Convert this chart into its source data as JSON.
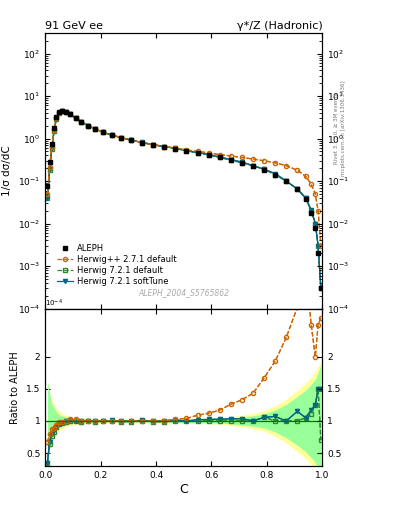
{
  "title_left": "91 GeV ee",
  "title_right": "γ*/Z (Hadronic)",
  "ylabel_main": "1/σ dσ/dC",
  "ylabel_ratio": "Ratio to ALEPH",
  "xlabel": "C",
  "watermark": "ALEPH_2004_S5765862",
  "right_label": "Rivet 3.1.10, ≥ 3M events",
  "right_label2": "mcplots.cern.ch [arXiv:1306.3436]",
  "legend": [
    "ALEPH",
    "Herwig++ 2.7.1 default",
    "Herwig 7.2.1 default",
    "Herwig 7.2.1 softTune"
  ],
  "aleph_color": "#000000",
  "herwig_pp_color": "#cc6600",
  "herwig721_color": "#338833",
  "herwig721soft_color": "#006688",
  "band_yellow": "#ffff99",
  "band_green": "#99ff99",
  "C_data": [
    0.008,
    0.016,
    0.024,
    0.032,
    0.04,
    0.05,
    0.06,
    0.075,
    0.09,
    0.11,
    0.13,
    0.155,
    0.18,
    0.21,
    0.24,
    0.275,
    0.31,
    0.35,
    0.39,
    0.43,
    0.47,
    0.51,
    0.55,
    0.59,
    0.63,
    0.67,
    0.71,
    0.75,
    0.79,
    0.83,
    0.87,
    0.91,
    0.94,
    0.96,
    0.975,
    0.985,
    0.995
  ],
  "aleph_y": [
    0.075,
    0.28,
    0.75,
    1.8,
    3.2,
    4.2,
    4.5,
    4.2,
    3.7,
    3.0,
    2.5,
    2.0,
    1.7,
    1.4,
    1.2,
    1.05,
    0.92,
    0.8,
    0.72,
    0.65,
    0.58,
    0.52,
    0.46,
    0.41,
    0.36,
    0.31,
    0.27,
    0.23,
    0.18,
    0.14,
    0.1,
    0.065,
    0.038,
    0.018,
    0.008,
    0.002,
    0.0003
  ],
  "herwig_pp_y": [
    0.05,
    0.22,
    0.65,
    1.6,
    3.0,
    4.1,
    4.4,
    4.2,
    3.8,
    3.1,
    2.5,
    2.0,
    1.7,
    1.4,
    1.2,
    1.05,
    0.92,
    0.8,
    0.72,
    0.65,
    0.6,
    0.54,
    0.5,
    0.46,
    0.42,
    0.39,
    0.36,
    0.33,
    0.3,
    0.27,
    0.23,
    0.18,
    0.13,
    0.085,
    0.05,
    0.02,
    0.003
  ],
  "herwig721_y": [
    0.04,
    0.18,
    0.58,
    1.5,
    2.9,
    4.0,
    4.35,
    4.15,
    3.72,
    3.0,
    2.48,
    2.0,
    1.68,
    1.4,
    1.2,
    1.04,
    0.91,
    0.8,
    0.71,
    0.64,
    0.58,
    0.52,
    0.46,
    0.41,
    0.36,
    0.31,
    0.27,
    0.23,
    0.19,
    0.14,
    0.1,
    0.065,
    0.04,
    0.02,
    0.01,
    0.003,
    0.0003
  ],
  "herwig721soft_y": [
    0.04,
    0.19,
    0.6,
    1.55,
    2.92,
    4.05,
    4.38,
    4.18,
    3.74,
    3.02,
    2.5,
    2.01,
    1.69,
    1.4,
    1.21,
    1.05,
    0.92,
    0.81,
    0.72,
    0.65,
    0.59,
    0.52,
    0.47,
    0.42,
    0.37,
    0.32,
    0.28,
    0.23,
    0.19,
    0.15,
    0.1,
    0.065,
    0.04,
    0.021,
    0.01,
    0.003,
    0.0003
  ],
  "ratio_herwig_pp": [
    0.67,
    0.79,
    0.87,
    0.89,
    0.94,
    0.98,
    0.98,
    1.0,
    1.03,
    1.03,
    1.0,
    1.0,
    1.0,
    1.0,
    1.0,
    1.0,
    1.0,
    1.0,
    1.0,
    1.0,
    1.03,
    1.04,
    1.09,
    1.12,
    1.17,
    1.26,
    1.33,
    1.43,
    1.67,
    1.93,
    2.3,
    2.77,
    3.42,
    2.5,
    2.0,
    2.5,
    2.6
  ],
  "ratio_herwig721": [
    0.35,
    0.64,
    0.77,
    0.83,
    0.91,
    0.95,
    0.97,
    0.99,
    1.005,
    1.0,
    0.99,
    1.0,
    0.99,
    1.0,
    1.0,
    0.99,
    0.99,
    1.0,
    0.99,
    0.985,
    1.0,
    1.0,
    1.0,
    1.0,
    1.0,
    1.0,
    1.0,
    1.0,
    1.06,
    1.0,
    1.0,
    1.0,
    1.05,
    1.11,
    1.25,
    1.5,
    0.7
  ],
  "ratio_herwig721soft": [
    0.35,
    0.68,
    0.8,
    0.86,
    0.91,
    0.96,
    0.97,
    0.995,
    1.01,
    1.007,
    1.0,
    1.005,
    0.994,
    1.0,
    1.008,
    1.0,
    1.0,
    1.01,
    1.0,
    1.0,
    1.017,
    1.0,
    1.02,
    1.024,
    1.028,
    1.032,
    1.037,
    1.0,
    1.056,
    1.07,
    1.0,
    1.15,
    1.05,
    1.17,
    1.25,
    1.5,
    1.5
  ],
  "band_yellow_lo": [
    0.38,
    0.57,
    0.68,
    0.74,
    0.8,
    0.85,
    0.88,
    0.91,
    0.93,
    0.945,
    0.955,
    0.96,
    0.965,
    0.97,
    0.975,
    0.975,
    0.975,
    0.975,
    0.975,
    0.975,
    0.97,
    0.965,
    0.96,
    0.955,
    0.95,
    0.93,
    0.91,
    0.88,
    0.84,
    0.76,
    0.66,
    0.52,
    0.41,
    0.32,
    0.24,
    0.14,
    0.07
  ],
  "band_yellow_hi": [
    1.62,
    1.43,
    1.32,
    1.26,
    1.2,
    1.15,
    1.12,
    1.09,
    1.07,
    1.055,
    1.045,
    1.04,
    1.035,
    1.03,
    1.025,
    1.025,
    1.025,
    1.025,
    1.025,
    1.025,
    1.03,
    1.035,
    1.04,
    1.045,
    1.05,
    1.07,
    1.09,
    1.12,
    1.16,
    1.24,
    1.34,
    1.48,
    1.59,
    1.68,
    1.76,
    1.86,
    1.93
  ],
  "band_green_lo": [
    0.38,
    0.57,
    0.73,
    0.79,
    0.86,
    0.9,
    0.92,
    0.94,
    0.955,
    0.965,
    0.97,
    0.975,
    0.978,
    0.98,
    0.982,
    0.982,
    0.982,
    0.982,
    0.982,
    0.982,
    0.98,
    0.978,
    0.975,
    0.972,
    0.968,
    0.955,
    0.94,
    0.92,
    0.89,
    0.83,
    0.74,
    0.62,
    0.52,
    0.43,
    0.35,
    0.25,
    0.12
  ],
  "band_green_hi": [
    1.62,
    1.43,
    1.27,
    1.21,
    1.14,
    1.1,
    1.08,
    1.06,
    1.045,
    1.035,
    1.03,
    1.025,
    1.022,
    1.02,
    1.018,
    1.018,
    1.018,
    1.018,
    1.018,
    1.018,
    1.02,
    1.022,
    1.025,
    1.028,
    1.032,
    1.045,
    1.06,
    1.08,
    1.11,
    1.17,
    1.26,
    1.38,
    1.48,
    1.57,
    1.65,
    1.75,
    1.88
  ],
  "ylim_main": [
    0.0001,
    300
  ],
  "ylim_ratio": [
    0.3,
    2.75
  ],
  "ratio_yticks": [
    0.5,
    1.0,
    1.5,
    2.0
  ],
  "ratio_yticklabels": [
    "0.5",
    "1",
    "1.5",
    "2"
  ]
}
